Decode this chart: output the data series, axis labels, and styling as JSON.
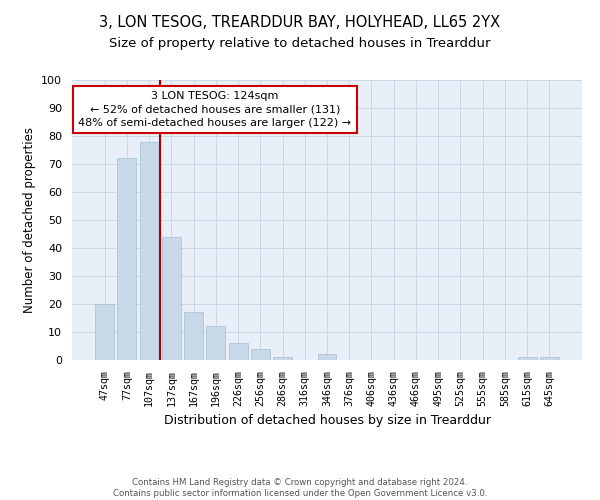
{
  "title": "3, LON TESOG, TREARDDUR BAY, HOLYHEAD, LL65 2YX",
  "subtitle": "Size of property relative to detached houses in Trearddur",
  "xlabel": "Distribution of detached houses by size in Trearddur",
  "ylabel": "Number of detached properties",
  "bar_color": "#c8d8e8",
  "bar_edge_color": "#a8bfd0",
  "annotation_line_color": "#aa0000",
  "annotation_box_color": "#cc0000",
  "categories": [
    "47sqm",
    "77sqm",
    "107sqm",
    "137sqm",
    "167sqm",
    "196sqm",
    "226sqm",
    "256sqm",
    "286sqm",
    "316sqm",
    "346sqm",
    "376sqm",
    "406sqm",
    "436sqm",
    "466sqm",
    "495sqm",
    "525sqm",
    "555sqm",
    "585sqm",
    "615sqm",
    "645sqm"
  ],
  "values": [
    20,
    72,
    78,
    44,
    17,
    12,
    6,
    4,
    1,
    0,
    2,
    0,
    0,
    0,
    0,
    0,
    0,
    0,
    0,
    1,
    1
  ],
  "property_size": 124,
  "pct_smaller": 52,
  "n_smaller": 131,
  "pct_larger_semi": 48,
  "n_larger_semi": 122,
  "ylim": [
    0,
    100
  ],
  "yticks": [
    0,
    10,
    20,
    30,
    40,
    50,
    60,
    70,
    80,
    90,
    100
  ],
  "grid_color": "#ccd8e4",
  "bg_color": "#e8eff8",
  "footer": "Contains HM Land Registry data © Crown copyright and database right 2024.\nContains public sector information licensed under the Open Government Licence v3.0.",
  "title_fontsize": 10.5,
  "subtitle_fontsize": 9.5,
  "xlabel_fontsize": 9,
  "ylabel_fontsize": 8.5,
  "annotation_fontsize": 8,
  "footer_fontsize": 6.2
}
